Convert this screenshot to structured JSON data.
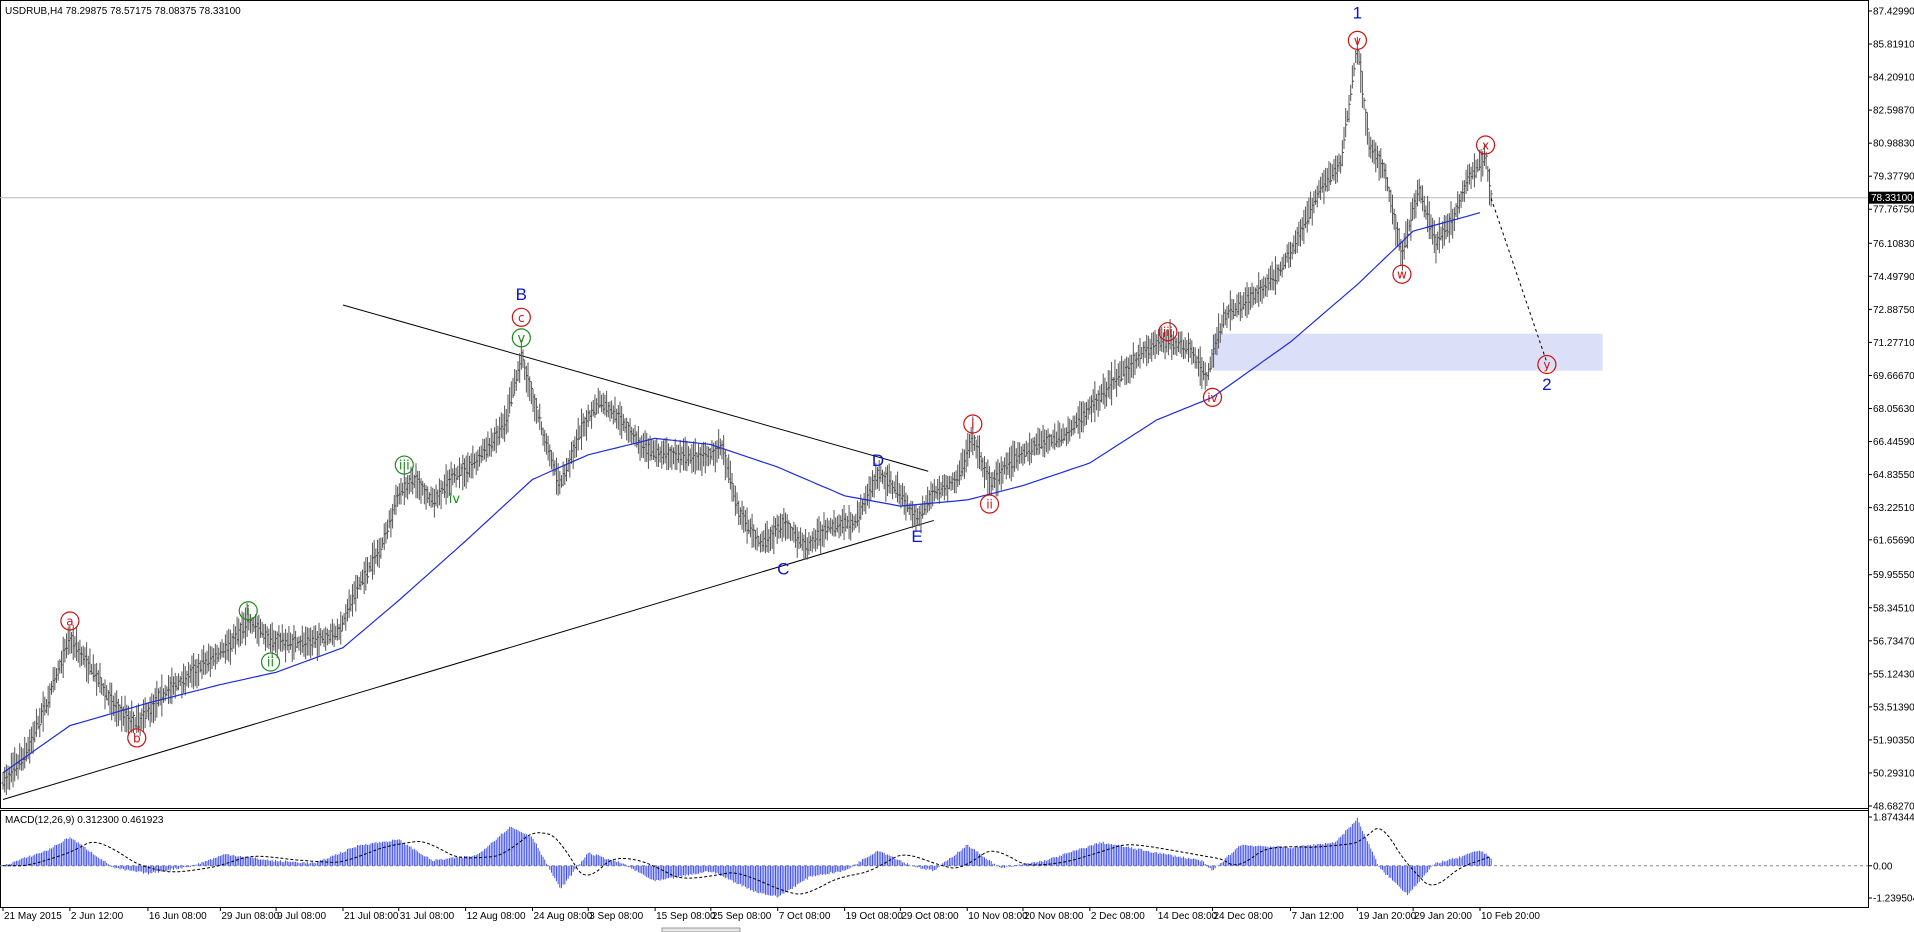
{
  "header": {
    "symbol_line": "USDRUB,H4  78.29875 78.57175 78.08375 78.33100",
    "macd_line": "MACD(12,26,9) 0.312300 0.461923"
  },
  "colors": {
    "bars": "#000000",
    "ma": "#1e2be0",
    "wave_blue": "#0a14d0",
    "wave_red": "#d01010",
    "wave_green": "#1d8a1d",
    "zone": "#dcdff8",
    "macd_hist": "#3f4fe8",
    "current_price_bg": "#000000"
  },
  "chart_data": [
    {
      "type": "line",
      "subtype": "ohlc-bars",
      "title": "USDRUB,H4",
      "current_price": "78.33100",
      "ylim": [
        48.6827,
        87.4299
      ],
      "y_ticks": [
        "87.42990",
        "85.81910",
        "84.20910",
        "82.59870",
        "80.98830",
        "79.37790",
        "77.76750",
        "76.10830",
        "74.49790",
        "72.88750",
        "71.27710",
        "69.66670",
        "68.05630",
        "66.44590",
        "64.83550",
        "63.22510",
        "61.65690",
        "59.95550",
        "58.34510",
        "56.73470",
        "55.12430",
        "53.51390",
        "51.90350",
        "50.29310",
        "48.68270"
      ],
      "x_ticks": [
        "21 May 2015",
        "2 Jun 12:00",
        "16 Jun 08:00",
        "29 Jun 08:00",
        "9 Jul 08:00",
        "21 Jul 08:00",
        "31 Jul 08:00",
        "12 Aug 08:00",
        "24 Aug 08:00",
        "3 Sep 08:00",
        "15 Sep 08:00",
        "25 Sep 08:00",
        "7 Oct 08:00",
        "19 Oct 08:00",
        "29 Oct 08:00",
        "10 Nov 08:00",
        "20 Nov 08:00",
        "2 Dec 08:00",
        "14 Dec 08:00",
        "24 Dec 08:00",
        "7 Jan 12:00",
        "19 Jan 20:00",
        "29 Jan 20:00",
        "10 Feb 20:00"
      ],
      "price_path": [
        {
          "x": "21 May 2015",
          "y": 49.8
        },
        {
          "x": "25 May",
          "y": 51.2
        },
        {
          "x": "29 May",
          "y": 53.8
        },
        {
          "x": "2 Jun",
          "y": 56.9
        },
        {
          "x": "6 Jun",
          "y": 55.3
        },
        {
          "x": "10 Jun",
          "y": 53.5
        },
        {
          "x": "14 Jun",
          "y": 52.7
        },
        {
          "x": "18 Jun",
          "y": 54.0
        },
        {
          "x": "24 Jun",
          "y": 55.2
        },
        {
          "x": "30 Jun",
          "y": 56.4
        },
        {
          "x": "4 Jul",
          "y": 57.7
        },
        {
          "x": "8 Jul",
          "y": 56.8
        },
        {
          "x": "14 Jul",
          "y": 56.6
        },
        {
          "x": "20 Jul",
          "y": 57.1
        },
        {
          "x": "24 Jul",
          "y": 59.5
        },
        {
          "x": "28 Jul",
          "y": 61.4
        },
        {
          "x": "31 Jul",
          "y": 64.0
        },
        {
          "x": "3 Aug",
          "y": 64.6
        },
        {
          "x": "6 Aug",
          "y": 63.5
        },
        {
          "x": "10 Aug",
          "y": 64.8
        },
        {
          "x": "14 Aug",
          "y": 65.5
        },
        {
          "x": "19 Aug",
          "y": 67.2
        },
        {
          "x": "22 Aug",
          "y": 70.6
        },
        {
          "x": "26 Aug",
          "y": 66.7
        },
        {
          "x": "29 Aug",
          "y": 64.3
        },
        {
          "x": "2 Sep",
          "y": 67.2
        },
        {
          "x": "5 Sep",
          "y": 68.4
        },
        {
          "x": "9 Sep",
          "y": 67.5
        },
        {
          "x": "13 Sep",
          "y": 66.0
        },
        {
          "x": "18 Sep",
          "y": 65.8
        },
        {
          "x": "22 Sep",
          "y": 65.6
        },
        {
          "x": "27 Sep",
          "y": 66.1
        },
        {
          "x": "30 Sep",
          "y": 63.0
        },
        {
          "x": "4 Oct",
          "y": 61.4
        },
        {
          "x": "8 Oct",
          "y": 62.5
        },
        {
          "x": "12 Oct",
          "y": 61.3
        },
        {
          "x": "16 Oct",
          "y": 62.3
        },
        {
          "x": "21 Oct",
          "y": 62.6
        },
        {
          "x": "25 Oct",
          "y": 64.9
        },
        {
          "x": "29 Oct",
          "y": 63.9
        },
        {
          "x": "1 Nov",
          "y": 62.6
        },
        {
          "x": "4 Nov",
          "y": 64.0
        },
        {
          "x": "8 Nov",
          "y": 64.5
        },
        {
          "x": "11 Nov",
          "y": 66.6
        },
        {
          "x": "14 Nov",
          "y": 64.4
        },
        {
          "x": "18 Nov",
          "y": 65.5
        },
        {
          "x": "23 Nov",
          "y": 66.4
        },
        {
          "x": "27 Nov",
          "y": 66.6
        },
        {
          "x": "2 Dec",
          "y": 68.1
        },
        {
          "x": "7 Dec",
          "y": 69.6
        },
        {
          "x": "12 Dec",
          "y": 71.0
        },
        {
          "x": "16 Dec",
          "y": 71.4
        },
        {
          "x": "20 Dec",
          "y": 70.9
        },
        {
          "x": "23 Dec",
          "y": 69.6
        },
        {
          "x": "26 Dec",
          "y": 72.5
        },
        {
          "x": "30 Dec",
          "y": 73.3
        },
        {
          "x": "4 Jan",
          "y": 74.4
        },
        {
          "x": "8 Jan",
          "y": 76.2
        },
        {
          "x": "12 Jan",
          "y": 78.6
        },
        {
          "x": "16 Jan",
          "y": 80.0
        },
        {
          "x": "19 Jan",
          "y": 85.8
        },
        {
          "x": "21 Jan",
          "y": 81.0
        },
        {
          "x": "24 Jan",
          "y": 79.5
        },
        {
          "x": "27 Jan",
          "y": 75.5
        },
        {
          "x": "30 Jan",
          "y": 78.8
        },
        {
          "x": "2 Feb",
          "y": 76.1
        },
        {
          "x": "5 Feb",
          "y": 77.2
        },
        {
          "x": "8 Feb",
          "y": 79.3
        },
        {
          "x": "11 Feb",
          "y": 80.4
        },
        {
          "x": "12 Feb",
          "y": 78.3
        }
      ],
      "moving_average_path": [
        {
          "x": "21 May 2015",
          "y": 50.3
        },
        {
          "x": "2 Jun",
          "y": 52.6
        },
        {
          "x": "16 Jun",
          "y": 53.7
        },
        {
          "x": "29 Jun",
          "y": 54.6
        },
        {
          "x": "9 Jul",
          "y": 55.2
        },
        {
          "x": "21 Jul",
          "y": 56.4
        },
        {
          "x": "31 Jul",
          "y": 58.7
        },
        {
          "x": "12 Aug",
          "y": 61.6
        },
        {
          "x": "24 Aug",
          "y": 64.6
        },
        {
          "x": "3 Sep",
          "y": 65.8
        },
        {
          "x": "15 Sep",
          "y": 66.6
        },
        {
          "x": "25 Sep",
          "y": 66.3
        },
        {
          "x": "7 Oct",
          "y": 65.2
        },
        {
          "x": "19 Oct",
          "y": 63.8
        },
        {
          "x": "29 Oct",
          "y": 63.3
        },
        {
          "x": "10 Nov",
          "y": 63.6
        },
        {
          "x": "20 Nov",
          "y": 64.3
        },
        {
          "x": "2 Dec",
          "y": 65.4
        },
        {
          "x": "14 Dec",
          "y": 67.5
        },
        {
          "x": "24 Dec",
          "y": 68.6
        },
        {
          "x": "7 Jan",
          "y": 71.3
        },
        {
          "x": "19 Jan",
          "y": 74.1
        },
        {
          "x": "29 Jan",
          "y": 76.7
        },
        {
          "x": "10 Feb",
          "y": 77.6
        }
      ],
      "projection": [
        {
          "x": "12 Feb",
          "y": 78.3
        },
        {
          "x": "22 Feb",
          "y": 70.3
        }
      ],
      "target_zone": {
        "y_from": 69.9,
        "y_to": 71.7,
        "x_from": "24 Dec",
        "x_to": "3 Mar"
      },
      "trendlines": [
        {
          "from": {
            "x": "21 Jul",
            "y": 73.1
          },
          "to": {
            "x": "3 Nov",
            "y": 65.0
          }
        },
        {
          "from": {
            "x": "21 May 2015",
            "y": 49.0
          },
          "to": {
            "x": "4 Nov",
            "y": 62.6
          }
        }
      ],
      "wave_labels": [
        {
          "text": "1",
          "color": "blue",
          "x": "19 Jan",
          "y": 87.3
        },
        {
          "text": "v",
          "color": "red",
          "circled": true,
          "x": "19 Jan",
          "y": 86.0
        },
        {
          "text": "x",
          "color": "red",
          "circled": true,
          "x": "11 Feb",
          "y": 80.9
        },
        {
          "text": "w",
          "color": "red",
          "circled": true,
          "x": "27 Jan",
          "y": 74.6
        },
        {
          "text": "y",
          "color": "red",
          "circled": true,
          "x": "22 Feb",
          "y": 70.2
        },
        {
          "text": "2",
          "color": "blue",
          "x": "22 Feb",
          "y": 69.2
        },
        {
          "text": "iii",
          "color": "red",
          "circled": true,
          "x": "16 Dec",
          "y": 71.8
        },
        {
          "text": "iv",
          "color": "red",
          "circled": true,
          "x": "24 Dec",
          "y": 68.6
        },
        {
          "text": "i",
          "color": "red",
          "circled": true,
          "x": "11 Nov",
          "y": 67.3
        },
        {
          "text": "ii",
          "color": "red",
          "circled": true,
          "x": "14 Nov",
          "y": 63.4
        },
        {
          "text": "B",
          "color": "blue",
          "x": "22 Aug",
          "y": 73.6
        },
        {
          "text": "c",
          "color": "red",
          "circled": true,
          "x": "22 Aug",
          "y": 72.5
        },
        {
          "text": "v",
          "color": "green",
          "circled": true,
          "x": "22 Aug",
          "y": 71.5
        },
        {
          "text": "iii",
          "color": "green",
          "circled": true,
          "x": "1 Aug",
          "y": 65.3
        },
        {
          "text": "iv",
          "color": "green",
          "x": "10 Aug",
          "y": 63.7
        },
        {
          "text": "D",
          "color": "blue",
          "x": "25 Oct",
          "y": 65.5
        },
        {
          "text": "C",
          "color": "blue",
          "x": "8 Oct",
          "y": 60.2
        },
        {
          "text": "E",
          "color": "blue",
          "x": "1 Nov",
          "y": 61.8
        },
        {
          "text": "a",
          "color": "red",
          "circled": true,
          "x": "2 Jun",
          "y": 57.7
        },
        {
          "text": "b",
          "color": "red",
          "circled": true,
          "x": "14 Jun",
          "y": 52.0
        },
        {
          "text": "i",
          "color": "green",
          "circled": true,
          "x": "4 Jul",
          "y": 58.2
        },
        {
          "text": "ii",
          "color": "green",
          "circled": true,
          "x": "8 Jul",
          "y": 55.7
        }
      ]
    },
    {
      "type": "bar",
      "title": "MACD(12,26,9)",
      "macd_value": "0.312300",
      "signal_value": "0.461923",
      "y_ticks": [
        "1.874344",
        "0.00",
        "-1.239504"
      ],
      "ylim": [
        -1.239504,
        1.874344
      ],
      "histogram_path": [
        {
          "x": "21 May 2015",
          "y": 0.0
        },
        {
          "x": "29 May",
          "y": 0.6
        },
        {
          "x": "2 Jun",
          "y": 1.1
        },
        {
          "x": "10 Jun",
          "y": -0.1
        },
        {
          "x": "16 Jun",
          "y": -0.3
        },
        {
          "x": "24 Jun",
          "y": 0.0
        },
        {
          "x": "30 Jun",
          "y": 0.45
        },
        {
          "x": "8 Jul",
          "y": 0.2
        },
        {
          "x": "16 Jul",
          "y": 0.1
        },
        {
          "x": "24 Jul",
          "y": 0.8
        },
        {
          "x": "31 Jul",
          "y": 1.0
        },
        {
          "x": "6 Aug",
          "y": 0.2
        },
        {
          "x": "14 Aug",
          "y": 0.4
        },
        {
          "x": "20 Aug",
          "y": 1.5
        },
        {
          "x": "24 Aug",
          "y": 1.1
        },
        {
          "x": "29 Aug",
          "y": -0.9
        },
        {
          "x": "3 Sep",
          "y": 0.5
        },
        {
          "x": "9 Sep",
          "y": 0.1
        },
        {
          "x": "15 Sep",
          "y": -0.6
        },
        {
          "x": "25 Sep",
          "y": -0.2
        },
        {
          "x": "3 Oct",
          "y": -1.0
        },
        {
          "x": "7 Oct",
          "y": -1.2
        },
        {
          "x": "13 Oct",
          "y": -0.4
        },
        {
          "x": "19 Oct",
          "y": -0.2
        },
        {
          "x": "25 Oct",
          "y": 0.6
        },
        {
          "x": "31 Oct",
          "y": 0.0
        },
        {
          "x": "4 Nov",
          "y": -0.2
        },
        {
          "x": "10 Nov",
          "y": 0.8
        },
        {
          "x": "16 Nov",
          "y": -0.1
        },
        {
          "x": "24 Nov",
          "y": 0.2
        },
        {
          "x": "4 Dec",
          "y": 0.9
        },
        {
          "x": "14 Dec",
          "y": 0.5
        },
        {
          "x": "22 Dec",
          "y": 0.2
        },
        {
          "x": "24 Dec",
          "y": -0.2
        },
        {
          "x": "29 Dec",
          "y": 0.8
        },
        {
          "x": "7 Jan",
          "y": 0.7
        },
        {
          "x": "15 Jan",
          "y": 0.9
        },
        {
          "x": "19 Jan",
          "y": 1.8
        },
        {
          "x": "23 Jan",
          "y": -0.1
        },
        {
          "x": "28 Jan",
          "y": -1.1
        },
        {
          "x": "2 Feb",
          "y": 0.1
        },
        {
          "x": "6 Feb",
          "y": 0.3
        },
        {
          "x": "10 Feb",
          "y": 0.6
        },
        {
          "x": "12 Feb",
          "y": 0.3
        }
      ]
    }
  ]
}
